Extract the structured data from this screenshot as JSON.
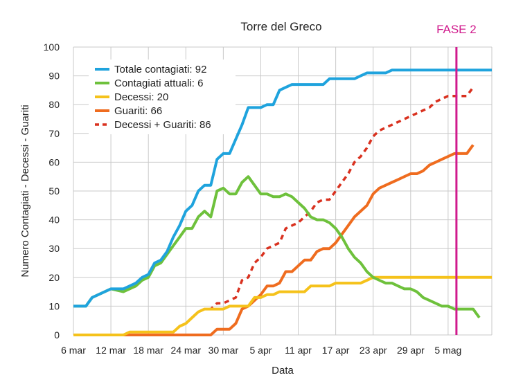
{
  "chart_data": {
    "type": "line",
    "title": "Torre del Greco",
    "xlabel": "Data",
    "ylabel": "Numero Contagiati - Decessi - Guariti",
    "ylim": [
      0,
      100
    ],
    "yticks": [
      0,
      10,
      20,
      30,
      40,
      50,
      60,
      70,
      80,
      90,
      100
    ],
    "xlim": [
      0,
      67
    ],
    "xticks": [
      {
        "day": 0,
        "label": "6 mar"
      },
      {
        "day": 6,
        "label": "12 mar"
      },
      {
        "day": 12,
        "label": "18 mar"
      },
      {
        "day": 18,
        "label": "24 mar"
      },
      {
        "day": 24,
        "label": "30 mar"
      },
      {
        "day": 30,
        "label": "5 apr"
      },
      {
        "day": 36,
        "label": "11 apr"
      },
      {
        "day": 42,
        "label": "17 apr"
      },
      {
        "day": 48,
        "label": "23 apr"
      },
      {
        "day": 54,
        "label": "29 apr"
      },
      {
        "day": 60,
        "label": "5 mag"
      }
    ],
    "grid": true,
    "legend_position": "top-left",
    "annotation": {
      "label": "FASE 2",
      "day": 60,
      "color": "#d01a8c"
    },
    "series": [
      {
        "name": "Totale contagiati: 92",
        "color": "#1fa3dd",
        "dashed": false,
        "points": [
          [
            0,
            10
          ],
          [
            2,
            10
          ],
          [
            3,
            13
          ],
          [
            5,
            15
          ],
          [
            6,
            16
          ],
          [
            8,
            16
          ],
          [
            10,
            18
          ],
          [
            11,
            20
          ],
          [
            12,
            21
          ],
          [
            13,
            25
          ],
          [
            14,
            26
          ],
          [
            15,
            29
          ],
          [
            16,
            34
          ],
          [
            17,
            38
          ],
          [
            18,
            43
          ],
          [
            19,
            45
          ],
          [
            20,
            50
          ],
          [
            21,
            52
          ],
          [
            22,
            52
          ],
          [
            23,
            61
          ],
          [
            24,
            63
          ],
          [
            25,
            63
          ],
          [
            26,
            68
          ],
          [
            27,
            73
          ],
          [
            28,
            79
          ],
          [
            30,
            79
          ],
          [
            31,
            80
          ],
          [
            32,
            80
          ],
          [
            33,
            85
          ],
          [
            34,
            86
          ],
          [
            35,
            87
          ],
          [
            38,
            87
          ],
          [
            39,
            87
          ],
          [
            40,
            87
          ],
          [
            41,
            89
          ],
          [
            45,
            89
          ],
          [
            46,
            90
          ],
          [
            47,
            91
          ],
          [
            50,
            91
          ],
          [
            51,
            92
          ],
          [
            67,
            92
          ]
        ]
      },
      {
        "name": "Contagiati attuali: 6",
        "color": "#6ec13c",
        "dashed": false,
        "points": [
          [
            0,
            10
          ],
          [
            2,
            10
          ],
          [
            3,
            13
          ],
          [
            5,
            15
          ],
          [
            6,
            16
          ],
          [
            8,
            15
          ],
          [
            10,
            17
          ],
          [
            11,
            19
          ],
          [
            12,
            20
          ],
          [
            13,
            24
          ],
          [
            14,
            25
          ],
          [
            15,
            28
          ],
          [
            16,
            31
          ],
          [
            17,
            34
          ],
          [
            18,
            37
          ],
          [
            19,
            37
          ],
          [
            20,
            41
          ],
          [
            21,
            43
          ],
          [
            22,
            41
          ],
          [
            23,
            50
          ],
          [
            24,
            51
          ],
          [
            25,
            49
          ],
          [
            26,
            49
          ],
          [
            27,
            53
          ],
          [
            28,
            55
          ],
          [
            29,
            52
          ],
          [
            30,
            49
          ],
          [
            31,
            49
          ],
          [
            32,
            48
          ],
          [
            33,
            48
          ],
          [
            34,
            49
          ],
          [
            35,
            48
          ],
          [
            36,
            46
          ],
          [
            37,
            44
          ],
          [
            38,
            41
          ],
          [
            39,
            40
          ],
          [
            40,
            40
          ],
          [
            41,
            39
          ],
          [
            42,
            37
          ],
          [
            43,
            34
          ],
          [
            44,
            30
          ],
          [
            45,
            27
          ],
          [
            46,
            25
          ],
          [
            47,
            22
          ],
          [
            48,
            20
          ],
          [
            49,
            19
          ],
          [
            50,
            18
          ],
          [
            51,
            18
          ],
          [
            52,
            17
          ],
          [
            53,
            16
          ],
          [
            54,
            16
          ],
          [
            55,
            15
          ],
          [
            56,
            13
          ],
          [
            57,
            12
          ],
          [
            58,
            11
          ],
          [
            59,
            10
          ],
          [
            60,
            10
          ],
          [
            61,
            9
          ],
          [
            63,
            9
          ],
          [
            64,
            9
          ],
          [
            65,
            6
          ]
        ]
      },
      {
        "name": "Decessi: 20",
        "color": "#f5c21b",
        "dashed": false,
        "points": [
          [
            0,
            0
          ],
          [
            8,
            0
          ],
          [
            9,
            1
          ],
          [
            16,
            1
          ],
          [
            17,
            3
          ],
          [
            18,
            4
          ],
          [
            19,
            6
          ],
          [
            20,
            8
          ],
          [
            21,
            9
          ],
          [
            24,
            9
          ],
          [
            25,
            10
          ],
          [
            28,
            10
          ],
          [
            29,
            13
          ],
          [
            30,
            13
          ],
          [
            31,
            14
          ],
          [
            32,
            14
          ],
          [
            33,
            15
          ],
          [
            37,
            15
          ],
          [
            38,
            17
          ],
          [
            41,
            17
          ],
          [
            42,
            18
          ],
          [
            46,
            18
          ],
          [
            47,
            19
          ],
          [
            48,
            20
          ],
          [
            67,
            20
          ]
        ]
      },
      {
        "name": "Guariti: 66",
        "color": "#ef6c1f",
        "dashed": false,
        "points": [
          [
            0,
            0
          ],
          [
            22,
            0
          ],
          [
            23,
            2
          ],
          [
            25,
            2
          ],
          [
            26,
            4
          ],
          [
            27,
            9
          ],
          [
            28,
            10
          ],
          [
            29,
            12
          ],
          [
            30,
            14
          ],
          [
            31,
            17
          ],
          [
            32,
            17
          ],
          [
            33,
            18
          ],
          [
            34,
            22
          ],
          [
            35,
            22
          ],
          [
            36,
            24
          ],
          [
            37,
            26
          ],
          [
            38,
            26
          ],
          [
            39,
            29
          ],
          [
            40,
            30
          ],
          [
            41,
            30
          ],
          [
            42,
            32
          ],
          [
            43,
            35
          ],
          [
            44,
            38
          ],
          [
            45,
            41
          ],
          [
            46,
            43
          ],
          [
            47,
            45
          ],
          [
            48,
            49
          ],
          [
            49,
            51
          ],
          [
            50,
            52
          ],
          [
            51,
            53
          ],
          [
            52,
            54
          ],
          [
            53,
            55
          ],
          [
            54,
            56
          ],
          [
            55,
            56
          ],
          [
            56,
            57
          ],
          [
            57,
            59
          ],
          [
            58,
            60
          ],
          [
            59,
            61
          ],
          [
            60,
            62
          ],
          [
            61,
            63
          ],
          [
            62,
            63
          ],
          [
            63,
            63
          ],
          [
            64,
            66
          ]
        ]
      },
      {
        "name": "Decessi + Guariti: 86",
        "color": "#d9311f",
        "dashed": true,
        "points": [
          [
            0,
            0
          ],
          [
            8,
            0
          ],
          [
            9,
            1
          ],
          [
            16,
            1
          ],
          [
            17,
            3
          ],
          [
            18,
            4
          ],
          [
            19,
            6
          ],
          [
            20,
            8
          ],
          [
            21,
            9
          ],
          [
            22,
            9
          ],
          [
            23,
            11
          ],
          [
            24,
            11
          ],
          [
            25,
            12
          ],
          [
            26,
            13
          ],
          [
            27,
            19
          ],
          [
            28,
            20
          ],
          [
            29,
            25
          ],
          [
            30,
            27
          ],
          [
            31,
            30
          ],
          [
            32,
            31
          ],
          [
            33,
            32
          ],
          [
            34,
            37
          ],
          [
            35,
            38
          ],
          [
            36,
            39
          ],
          [
            37,
            41
          ],
          [
            38,
            43
          ],
          [
            39,
            46
          ],
          [
            40,
            47
          ],
          [
            41,
            47
          ],
          [
            42,
            50
          ],
          [
            43,
            53
          ],
          [
            44,
            56
          ],
          [
            45,
            60
          ],
          [
            46,
            62
          ],
          [
            47,
            65
          ],
          [
            48,
            69
          ],
          [
            49,
            71
          ],
          [
            50,
            72
          ],
          [
            51,
            73
          ],
          [
            52,
            74
          ],
          [
            53,
            75
          ],
          [
            54,
            76
          ],
          [
            55,
            77
          ],
          [
            56,
            78
          ],
          [
            57,
            79
          ],
          [
            58,
            81
          ],
          [
            59,
            82
          ],
          [
            60,
            83
          ],
          [
            61,
            83
          ],
          [
            62,
            83
          ],
          [
            63,
            83
          ],
          [
            64,
            86
          ]
        ]
      }
    ]
  }
}
